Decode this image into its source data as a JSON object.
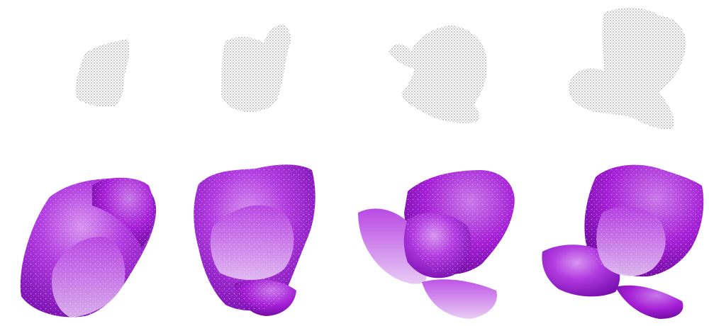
{
  "figure": {
    "stages": [
      {
        "stage": 1,
        "point_cloud_color": "#8f8f8f",
        "petal_color": "#a51fd6"
      },
      {
        "stage": 2,
        "point_cloud_color": "#8f8f8f",
        "petal_color": "#a51fd6"
      },
      {
        "stage": 3,
        "point_cloud_color": "#8f8f8f",
        "petal_color": "#a51fd6"
      },
      {
        "stage": 4,
        "point_cloud_color": "#8f8f8f",
        "petal_color": "#a51fd6"
      }
    ],
    "colors": {
      "background": "#ffffff",
      "points": "#8f8f8f",
      "petal_light": "#c46be6",
      "petal_mid": "#a51fd6",
      "petal_dark": "#7a0fb0",
      "petal_speckle": "#ead6f4"
    }
  }
}
